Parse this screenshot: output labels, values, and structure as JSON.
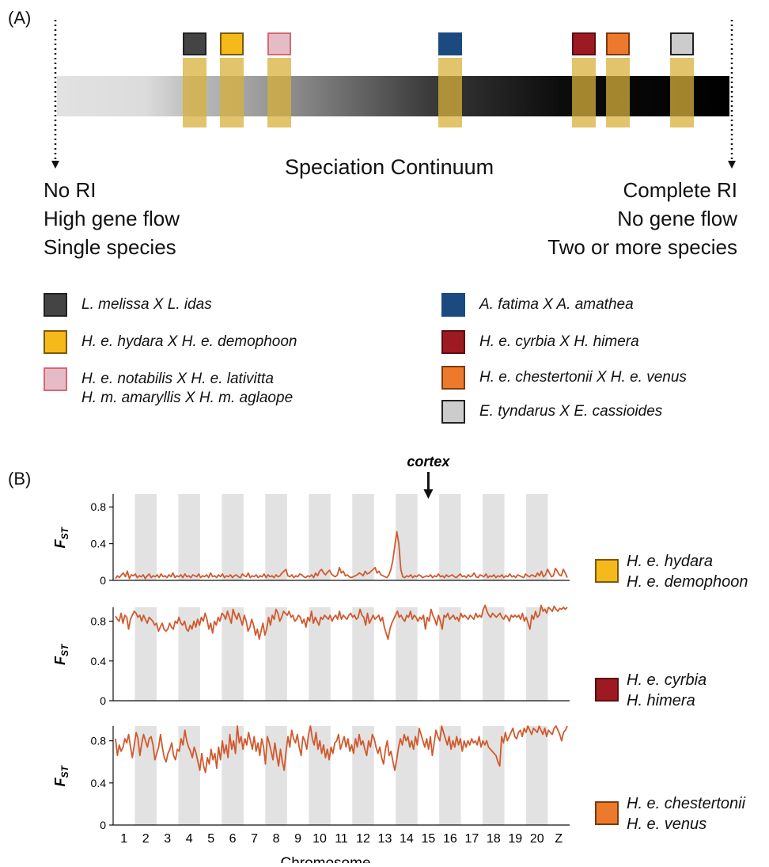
{
  "panel_a": {
    "label": "(A)",
    "title": "Speciation Continuum",
    "left_lines": [
      "No RI",
      "High gene flow",
      "Single species"
    ],
    "right_lines": [
      "Complete RI",
      "No gene flow",
      "Two or more species"
    ],
    "markers": [
      {
        "color": "#444444",
        "border": "#222222"
      },
      {
        "color": "#f6b91a",
        "border": "#7a5a10"
      },
      {
        "color": "#e5bcc6",
        "border": "#d46a74"
      },
      {
        "color": "#1b4a80",
        "border": "#1b4a80"
      },
      {
        "color": "#9e1a22",
        "border": "#5a0e12"
      },
      {
        "color": "#ed7a2c",
        "border": "#7a3a10"
      },
      {
        "color": "#cccccc",
        "border": "#222222"
      }
    ],
    "legend_left": [
      {
        "text": "L. melissa X L. idas",
        "color": "#444444",
        "border": "#222222"
      },
      {
        "text": "H. e. hydara X H. e. demophoon",
        "color": "#f6b91a",
        "border": "#7a5a10"
      },
      {
        "text": "H. e. notabilis X H. e. lativitta",
        "text2": "H. m. amaryllis X H. m. aglaope",
        "color": "#e5bcc6",
        "border": "#d46a74"
      }
    ],
    "legend_right": [
      {
        "text": "A. fatima X A. amathea",
        "color": "#1b4a80",
        "border": "#1b4a80"
      },
      {
        "text": "H. e. cyrbia X H. himera",
        "color": "#9e1a22",
        "border": "#5a0e12"
      },
      {
        "text": "H. e. chestertonii X H. e. venus",
        "color": "#ed7a2c",
        "border": "#7a3a10"
      },
      {
        "text": "E. tyndarus X E. cassioides",
        "color": "#cccccc",
        "border": "#222222"
      }
    ]
  },
  "panel_b": {
    "label": "(B)",
    "annotation": "cortex",
    "xlabel": "Chromosome",
    "ylabel": "F",
    "ylabel_sub": "ST",
    "y_ticks": [
      "0",
      "0.4",
      "0.8"
    ],
    "x_ticks": [
      "1",
      "2",
      "3",
      "4",
      "5",
      "6",
      "7",
      "8",
      "9",
      "10",
      "11",
      "12",
      "13",
      "14",
      "15",
      "16",
      "17",
      "18",
      "19",
      "20",
      "Z"
    ],
    "line_color": "#d05a2e",
    "stripe_color": "#e2e2e2"
  },
  "chart_data": [
    {
      "type": "line",
      "ylabel": "FST",
      "xlabel": "Chromosome",
      "ylim": [
        0,
        1
      ],
      "legend": [
        "H. e. hydara",
        "H. e. demophoon"
      ],
      "legend_color": "#f6b91a",
      "legend_border": "#7a5a10",
      "series": [
        {
          "values": [
            0.02,
            0.05,
            0.03,
            0.06,
            0.08,
            0.04,
            0.1,
            0.02,
            0.06,
            0.05,
            0.07,
            0.03,
            0.05,
            0.04,
            0.06,
            0.02,
            0.05,
            0.07,
            0.03,
            0.05,
            0.04,
            0.06,
            0.03,
            0.07,
            0.04,
            0.05,
            0.03,
            0.06,
            0.04,
            0.08,
            0.03,
            0.05,
            0.04,
            0.06,
            0.03,
            0.07,
            0.04,
            0.05,
            0.03,
            0.06,
            0.05,
            0.04,
            0.07,
            0.03,
            0.05,
            0.04,
            0.06,
            0.03,
            0.08,
            0.04,
            0.05,
            0.03,
            0.06,
            0.04,
            0.07,
            0.03,
            0.05,
            0.04,
            0.06,
            0.03,
            0.05,
            0.06,
            0.04,
            0.03,
            0.07,
            0.05,
            0.04,
            0.08,
            0.03,
            0.05,
            0.04,
            0.06,
            0.03,
            0.05,
            0.04,
            0.07,
            0.03,
            0.06,
            0.04,
            0.05,
            0.03,
            0.06,
            0.04,
            0.05,
            0.08,
            0.1,
            0.12,
            0.05,
            0.04,
            0.06,
            0.03,
            0.05,
            0.04,
            0.07,
            0.06,
            0.04,
            0.03,
            0.05,
            0.04,
            0.06,
            0.03,
            0.08,
            0.05,
            0.1,
            0.12,
            0.08,
            0.06,
            0.09,
            0.11,
            0.07,
            0.05,
            0.04,
            0.06,
            0.14,
            0.08,
            0.1,
            0.05,
            0.06,
            0.04,
            0.03,
            0.04,
            0.05,
            0.06,
            0.08,
            0.07,
            0.05,
            0.1,
            0.07,
            0.08,
            0.1,
            0.12,
            0.14,
            0.08,
            0.1,
            0.06,
            0.05,
            0.04,
            0.03,
            0.06,
            0.12,
            0.22,
            0.38,
            0.53,
            0.4,
            0.12,
            0.04,
            0.03,
            0.05,
            0.04,
            0.06,
            0.03,
            0.05,
            0.04,
            0.06,
            0.05,
            0.03,
            0.04,
            0.05,
            0.04,
            0.06,
            0.03,
            0.05,
            0.04,
            0.07,
            0.04,
            0.05,
            0.03,
            0.06,
            0.04,
            0.05,
            0.06,
            0.04,
            0.03,
            0.05,
            0.07,
            0.04,
            0.05,
            0.03,
            0.06,
            0.04,
            0.05,
            0.08,
            0.04,
            0.03,
            0.06,
            0.05,
            0.04,
            0.07,
            0.03,
            0.05,
            0.04,
            0.06,
            0.03,
            0.05,
            0.04,
            0.06,
            0.03,
            0.05,
            0.04,
            0.07,
            0.04,
            0.05,
            0.03,
            0.06,
            0.05,
            0.04,
            0.03,
            0.07,
            0.05,
            0.04,
            0.06,
            0.05,
            0.04,
            0.08,
            0.05,
            0.1,
            0.04,
            0.06,
            0.12,
            0.08,
            0.04,
            0.05,
            0.13,
            0.1,
            0.06,
            0.05,
            0.12,
            0.08,
            0.03
          ]
        }
      ]
    },
    {
      "type": "line",
      "ylabel": "FST",
      "xlabel": "Chromosome",
      "ylim": [
        0,
        1
      ],
      "legend": [
        "H. e. cyrbia",
        "H. himera"
      ],
      "legend_color": "#9e1a22",
      "legend_border": "#5a0e12",
      "series": [
        {
          "values": [
            0.85,
            0.82,
            0.8,
            0.88,
            0.78,
            0.86,
            0.84,
            0.72,
            0.82,
            0.86,
            0.9,
            0.88,
            0.84,
            0.86,
            0.8,
            0.86,
            0.82,
            0.78,
            0.84,
            0.82,
            0.8,
            0.76,
            0.78,
            0.7,
            0.74,
            0.78,
            0.72,
            0.7,
            0.72,
            0.78,
            0.74,
            0.72,
            0.8,
            0.78,
            0.84,
            0.78,
            0.76,
            0.8,
            0.72,
            0.7,
            0.76,
            0.72,
            0.8,
            0.74,
            0.82,
            0.76,
            0.84,
            0.8,
            0.88,
            0.82,
            0.72,
            0.78,
            0.68,
            0.8,
            0.76,
            0.84,
            0.8,
            0.88,
            0.86,
            0.82,
            0.9,
            0.84,
            0.78,
            0.92,
            0.86,
            0.82,
            0.88,
            0.82,
            0.76,
            0.86,
            0.8,
            0.7,
            0.74,
            0.82,
            0.76,
            0.66,
            0.72,
            0.62,
            0.7,
            0.78,
            0.66,
            0.72,
            0.84,
            0.76,
            0.86,
            0.82,
            0.92,
            0.88,
            0.8,
            0.84,
            0.9,
            0.88,
            0.86,
            0.9,
            0.84,
            0.86,
            0.8,
            0.82,
            0.86,
            0.84,
            0.78,
            0.82,
            0.74,
            0.84,
            0.8,
            0.9,
            0.78,
            0.84,
            0.8,
            0.76,
            0.84,
            0.82,
            0.86,
            0.84,
            0.82,
            0.86,
            0.8,
            0.84,
            0.86,
            0.82,
            0.9,
            0.82,
            0.86,
            0.84,
            0.82,
            0.86,
            0.88,
            0.84,
            0.86,
            0.82,
            0.84,
            0.92,
            0.86,
            0.84,
            0.76,
            0.88,
            0.78,
            0.82,
            0.86,
            0.82,
            0.84,
            0.86,
            0.8,
            0.84,
            0.74,
            0.68,
            0.62,
            0.72,
            0.78,
            0.82,
            0.86,
            0.9,
            0.84,
            0.86,
            0.82,
            0.8,
            0.86,
            0.84,
            0.9,
            0.82,
            0.86,
            0.84,
            0.8,
            0.84,
            0.82,
            0.86,
            0.72,
            0.84,
            0.8,
            0.92,
            0.86,
            0.82,
            0.76,
            0.86,
            0.8,
            0.72,
            0.86,
            0.84,
            0.88,
            0.82,
            0.84,
            0.86,
            0.82,
            0.84,
            0.8,
            0.88,
            0.84,
            0.86,
            0.84,
            0.82,
            0.86,
            0.84,
            0.82,
            0.88,
            0.84,
            0.86,
            0.84,
            0.92,
            0.96,
            0.9,
            0.86,
            0.84,
            0.88,
            0.86,
            0.84,
            0.86,
            0.88,
            0.84,
            0.82,
            0.86,
            0.84,
            0.8,
            0.86,
            0.84,
            0.86,
            0.84,
            0.86,
            0.82,
            0.88,
            0.8,
            0.84,
            0.78,
            0.72,
            0.86,
            0.82,
            0.9,
            0.84,
            0.86,
            0.96,
            0.9,
            0.92,
            0.88,
            0.94,
            0.92,
            0.9,
            0.95,
            0.92,
            0.9,
            0.93,
            0.92,
            0.94,
            0.92,
            0.94
          ]
        }
      ]
    },
    {
      "type": "line",
      "ylabel": "FST",
      "xlabel": "Chromosome",
      "ylim": [
        0,
        1
      ],
      "legend": [
        "H. e. chestertonii",
        "H. e. venus"
      ],
      "legend_color": "#ed7a2c",
      "legend_border": "#7a3a10",
      "series": [
        {
          "values": [
            0.82,
            0.66,
            0.76,
            0.7,
            0.74,
            0.82,
            0.78,
            0.86,
            0.74,
            0.64,
            0.76,
            0.88,
            0.82,
            0.66,
            0.78,
            0.86,
            0.8,
            0.74,
            0.82,
            0.84,
            0.76,
            0.62,
            0.68,
            0.74,
            0.86,
            0.74,
            0.64,
            0.6,
            0.68,
            0.72,
            0.78,
            0.66,
            0.62,
            0.72,
            0.7,
            0.82,
            0.76,
            0.9,
            0.8,
            0.74,
            0.7,
            0.64,
            0.74,
            0.68,
            0.6,
            0.52,
            0.68,
            0.56,
            0.5,
            0.64,
            0.58,
            0.72,
            0.62,
            0.68,
            0.54,
            0.74,
            0.62,
            0.8,
            0.68,
            0.76,
            0.64,
            0.86,
            0.72,
            0.8,
            0.68,
            0.94,
            0.78,
            0.84,
            0.72,
            0.82,
            0.76,
            0.88,
            0.8,
            0.72,
            0.84,
            0.7,
            0.78,
            0.66,
            0.82,
            0.74,
            0.58,
            0.84,
            0.78,
            0.7,
            0.62,
            0.78,
            0.66,
            0.56,
            0.72,
            0.6,
            0.52,
            0.7,
            0.84,
            0.74,
            0.9,
            0.82,
            0.78,
            0.86,
            0.74,
            0.66,
            0.84,
            0.8,
            0.72,
            0.86,
            0.94,
            0.82,
            0.76,
            0.88,
            0.72,
            0.8,
            0.68,
            0.76,
            0.64,
            0.72,
            0.62,
            0.74,
            0.68,
            0.78,
            0.8,
            0.86,
            0.72,
            0.78,
            0.84,
            0.74,
            0.82,
            0.7,
            0.76,
            0.68,
            0.82,
            0.74,
            0.86,
            0.76,
            0.8,
            0.72,
            0.66,
            0.8,
            0.74,
            0.86,
            0.82,
            0.74,
            0.68,
            0.74,
            0.64,
            0.58,
            0.72,
            0.8,
            0.66,
            0.7,
            0.6,
            0.52,
            0.62,
            0.74,
            0.82,
            0.76,
            0.86,
            0.8,
            0.84,
            0.74,
            0.8,
            0.72,
            0.84,
            0.76,
            0.92,
            0.86,
            0.8,
            0.74,
            0.82,
            0.72,
            0.84,
            0.66,
            0.78,
            0.9,
            0.84,
            0.8,
            0.94,
            0.88,
            0.82,
            0.76,
            0.84,
            0.72,
            0.8,
            0.74,
            0.84,
            0.76,
            0.82,
            0.7,
            0.8,
            0.74,
            0.8,
            0.76,
            0.82,
            0.78,
            0.8,
            0.76,
            0.84,
            0.74,
            0.8,
            0.76,
            0.8,
            0.74,
            0.72,
            0.7,
            0.68,
            0.66,
            0.6,
            0.56,
            0.84,
            0.78,
            0.88,
            0.8,
            0.84,
            0.88,
            0.92,
            0.84,
            0.82,
            0.88,
            0.9,
            0.84,
            0.92,
            0.88,
            0.94,
            0.9,
            0.86,
            0.92,
            0.9,
            0.88,
            0.94,
            0.9,
            0.86,
            0.92,
            0.84,
            0.9,
            0.88,
            0.86,
            0.92,
            0.94,
            0.9,
            0.86,
            0.8,
            0.88,
            0.9,
            0.94
          ]
        }
      ]
    }
  ]
}
